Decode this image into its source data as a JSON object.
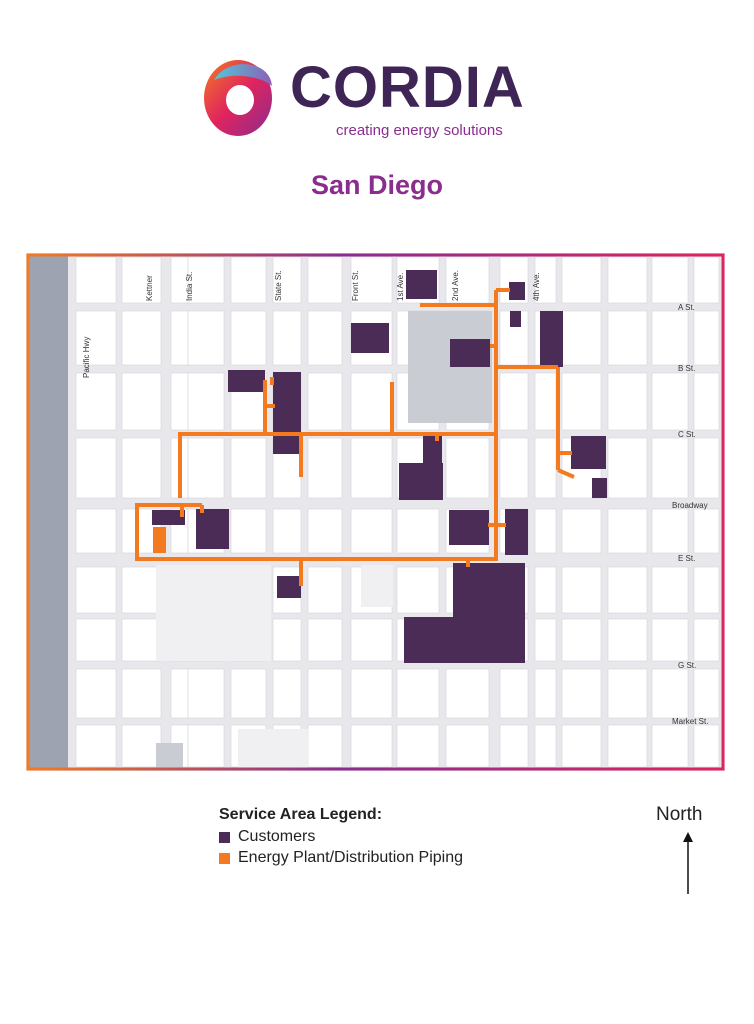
{
  "brand": {
    "name": "CORDIA",
    "tagline": "creating energy solutions",
    "colors": {
      "primary": "#3f2456",
      "accent": "#8b2c8f",
      "orange": "#f47a20",
      "pink": "#e0245e"
    }
  },
  "page": {
    "city_title": "San Diego"
  },
  "map": {
    "north_south_streets": [
      "Pacific Hwy",
      "Kettner",
      "India St.",
      "State St.",
      "Front St.",
      "1st Ave.",
      "2nd Ave.",
      "4th Ave."
    ],
    "east_west_streets": [
      "A St.",
      "B St.",
      "C St.",
      "Broadway",
      "E St.",
      "G St.",
      "Market St."
    ],
    "colors": {
      "customer": "#4a2c56",
      "piping": "#f47a20",
      "block": "#ffffff",
      "road": "#e7e7ec",
      "park": "#c9ccd3",
      "highway": "#9ea3b1"
    }
  },
  "legend": {
    "title": "Service Area Legend:",
    "items": [
      {
        "label": "Customers",
        "color": "#4a2c56"
      },
      {
        "label": "Energy Plant/Distribution Piping",
        "color": "#f47a20"
      }
    ]
  },
  "compass": {
    "label": "North",
    "icon": "north-arrow-icon"
  }
}
